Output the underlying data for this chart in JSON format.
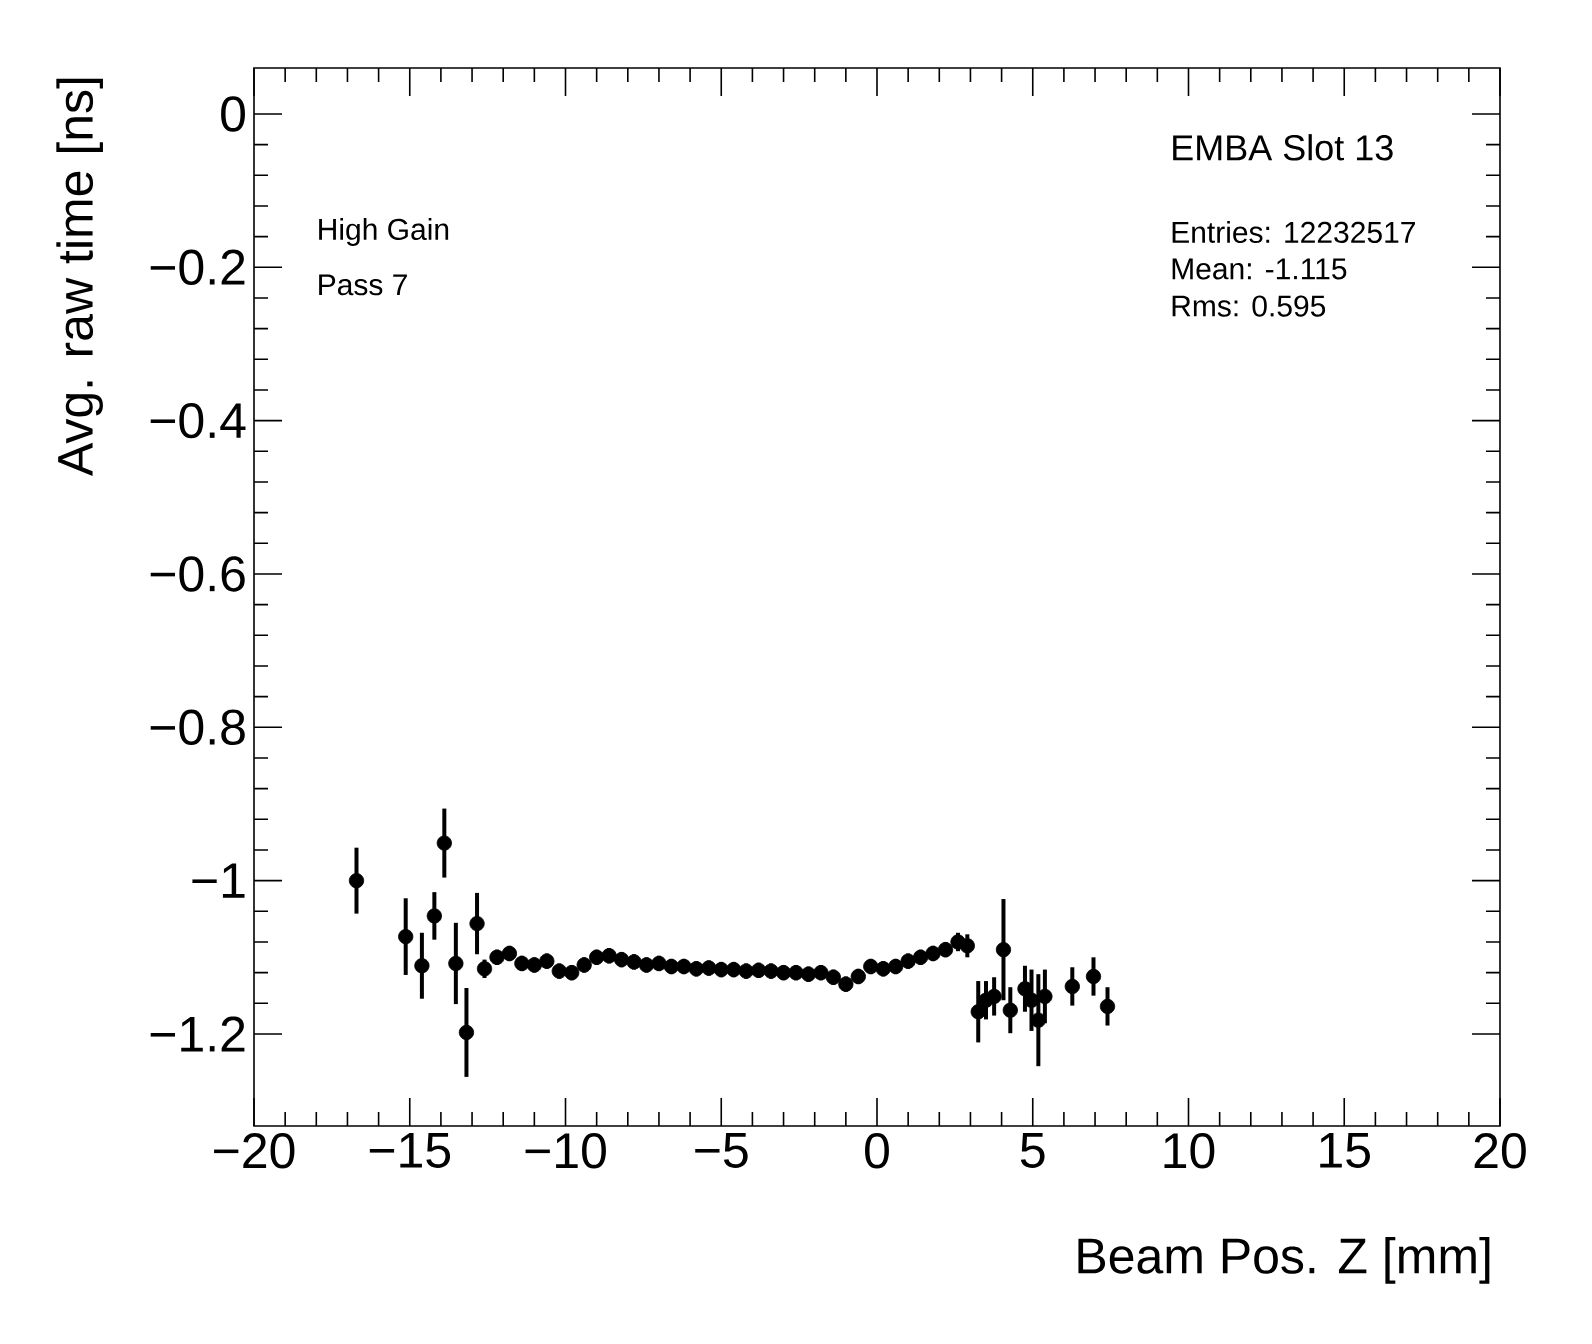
{
  "chart_data": {
    "type": "scatter",
    "xlabel": "Beam Pos. Z [mm]",
    "ylabel": "Avg. raw time [ns]",
    "annotations": [
      "EMBA Slot 13",
      "High Gain",
      "Pass 7",
      "Entries: 12232517",
      "Mean: -1.115",
      "Rms: 0.595"
    ],
    "xlim": [
      -20,
      20
    ],
    "ylim": [
      -1.32,
      0.06
    ],
    "xticks": [
      {
        "value": -20,
        "label": "−20"
      },
      {
        "value": -15,
        "label": "−15"
      },
      {
        "value": -10,
        "label": "−10"
      },
      {
        "value": -5,
        "label": "−5"
      },
      0,
      5,
      10,
      15,
      20
    ],
    "yticks": [
      {
        "value": -1.2,
        "label": "−1.2"
      },
      {
        "value": -1,
        "label": "−1"
      },
      {
        "value": -0.8,
        "label": "−0.8"
      },
      {
        "value": -0.6,
        "label": "−0.6"
      },
      {
        "value": -0.4,
        "label": "−0.4"
      },
      {
        "value": -0.2,
        "label": "−0.2"
      },
      0
    ],
    "marker": "circle",
    "grid": false,
    "series": [
      {
        "color": "#000000",
        "x": [
          -16.71,
          -15.13,
          -14.61,
          -14.21,
          -13.89,
          -13.52,
          -13.18,
          -12.84,
          -12.6,
          -12.2,
          -11.8,
          -11.4,
          -11.0,
          -10.6,
          -10.2,
          -9.8,
          -9.4,
          -9.0,
          -8.6,
          -8.2,
          -7.8,
          -7.4,
          -7.0,
          -6.6,
          -6.2,
          -5.8,
          -5.4,
          -5.0,
          -4.6,
          -4.2,
          -3.8,
          -3.4,
          -3.0,
          -2.6,
          -2.2,
          -1.8,
          -1.4,
          -1.0,
          -0.6,
          -0.2,
          0.2,
          0.6,
          1.0,
          1.4,
          1.8,
          2.2,
          2.6,
          2.9,
          3.25,
          3.5,
          3.76,
          4.06,
          4.28,
          4.75,
          4.96,
          5.18,
          5.39,
          6.27,
          6.95,
          7.4
        ],
        "values": [
          -1.0,
          -1.073,
          -1.111,
          -1.046,
          -0.951,
          -1.108,
          -1.198,
          -1.056,
          -1.115,
          -1.1,
          -1.095,
          -1.108,
          -1.11,
          -1.105,
          -1.118,
          -1.12,
          -1.11,
          -1.1,
          -1.098,
          -1.103,
          -1.106,
          -1.11,
          -1.108,
          -1.112,
          -1.112,
          -1.115,
          -1.114,
          -1.116,
          -1.116,
          -1.118,
          -1.117,
          -1.118,
          -1.12,
          -1.12,
          -1.122,
          -1.12,
          -1.126,
          -1.135,
          -1.125,
          -1.112,
          -1.115,
          -1.112,
          -1.105,
          -1.1,
          -1.095,
          -1.09,
          -1.08,
          -1.085,
          -1.171,
          -1.156,
          -1.151,
          -1.09,
          -1.169,
          -1.141,
          -1.156,
          -1.182,
          -1.151,
          -1.138,
          -1.125,
          -1.164
        ],
        "errors": [
          0.043,
          0.05,
          0.043,
          0.031,
          0.045,
          0.053,
          0.058,
          0.04,
          0.012,
          0.01,
          0.01,
          0.01,
          0.01,
          0.01,
          0.01,
          0.01,
          0.01,
          0.01,
          0.01,
          0.01,
          0.01,
          0.01,
          0.01,
          0.01,
          0.01,
          0.01,
          0.01,
          0.01,
          0.01,
          0.01,
          0.01,
          0.01,
          0.01,
          0.01,
          0.01,
          0.01,
          0.01,
          0.01,
          0.01,
          0.01,
          0.01,
          0.01,
          0.01,
          0.01,
          0.01,
          0.01,
          0.012,
          0.015,
          0.04,
          0.025,
          0.025,
          0.066,
          0.03,
          0.03,
          0.04,
          0.06,
          0.035,
          0.025,
          0.025,
          0.025
        ]
      }
    ]
  }
}
